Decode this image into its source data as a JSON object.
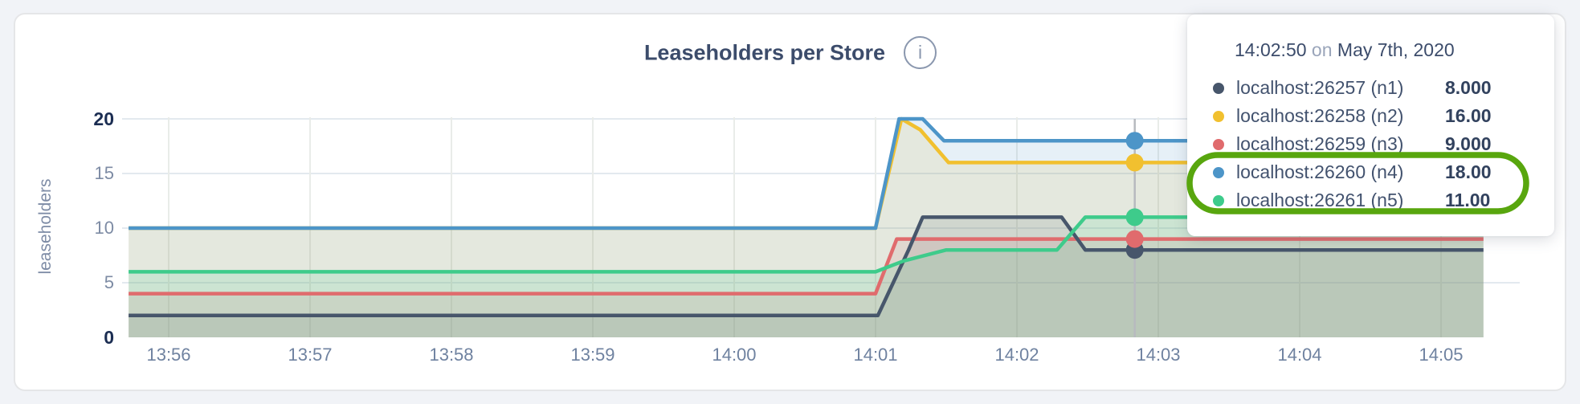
{
  "header": {
    "title": "Leaseholders per Store",
    "info_icon": "i"
  },
  "tooltip": {
    "time": "14:02:50",
    "conj": "on",
    "date": "May 7th, 2020",
    "rows": [
      {
        "label": "localhost:26257 (n1)",
        "value": "8.000"
      },
      {
        "label": "localhost:26258 (n2)",
        "value": "16.00"
      },
      {
        "label": "localhost:26259 (n3)",
        "value": "9.000"
      },
      {
        "label": "localhost:26260 (n4)",
        "value": "18.00"
      },
      {
        "label": "localhost:26261 (n5)",
        "value": "11.00"
      }
    ]
  },
  "annotation": {
    "shape": "rounded-oval",
    "color": "#58a60e",
    "rows_circled": [
      "localhost:26260 (n4)",
      "localhost:26261 (n5)"
    ]
  },
  "colors": {
    "text_dark": "#3c4c6b",
    "text_muted": "#7e8ca6",
    "scanline": "#b7babf",
    "grid_horizontal": "#e3e9ef",
    "grid_vertical": "#e9ece9"
  },
  "chart_data": {
    "type": "area",
    "title": "Leaseholders per Store",
    "ylabel": "leaseholders",
    "xlabel": "",
    "ylim": [
      0,
      20
    ],
    "grid": true,
    "legend": "tooltip",
    "x_range": [
      "13:55:43",
      "14:05:18"
    ],
    "y_ticks": [
      {
        "label": "20",
        "value": 20,
        "emphasis": true
      },
      {
        "label": "15",
        "value": 15,
        "emphasis": false
      },
      {
        "label": "10",
        "value": 10,
        "emphasis": false
      },
      {
        "label": "5",
        "value": 5,
        "emphasis": false
      },
      {
        "label": "0",
        "value": 0,
        "emphasis": true
      }
    ],
    "x_ticks": [
      {
        "label": "13:56"
      },
      {
        "label": "13:57"
      },
      {
        "label": "13:58"
      },
      {
        "label": "13:59"
      },
      {
        "label": "14:00"
      },
      {
        "label": "14:01"
      },
      {
        "label": "14:02"
      },
      {
        "label": "14:03"
      },
      {
        "label": "14:04"
      },
      {
        "label": "14:05"
      }
    ],
    "series": [
      {
        "name": "localhost:26257 (n1)",
        "color": "#47566b",
        "points": [
          [
            "13:55:43",
            2
          ],
          [
            "14:01:01",
            2
          ],
          [
            "14:01:14",
            8
          ],
          [
            "14:01:20",
            11
          ],
          [
            "14:02:19",
            11
          ],
          [
            "14:02:29",
            8
          ],
          [
            "14:05:18",
            8
          ]
        ]
      },
      {
        "name": "localhost:26258 (n2)",
        "color": "#f1c02f",
        "points": [
          [
            "13:55:43",
            10
          ],
          [
            "14:01:00",
            10
          ],
          [
            "14:01:11",
            20
          ],
          [
            "14:01:19",
            19
          ],
          [
            "14:01:31",
            16
          ],
          [
            "14:05:18",
            16
          ]
        ]
      },
      {
        "name": "localhost:26259 (n3)",
        "color": "#e06b6d",
        "points": [
          [
            "13:55:43",
            4
          ],
          [
            "14:01:00",
            4
          ],
          [
            "14:01:09",
            9
          ],
          [
            "14:05:18",
            9
          ]
        ]
      },
      {
        "name": "localhost:26260 (n4)",
        "color": "#4d95c8",
        "points": [
          [
            "13:55:43",
            10
          ],
          [
            "14:01:00",
            10
          ],
          [
            "14:01:10",
            20
          ],
          [
            "14:01:20",
            20
          ],
          [
            "14:01:29",
            18
          ],
          [
            "14:05:18",
            18
          ]
        ]
      },
      {
        "name": "localhost:26261 (n5)",
        "color": "#3ecb8b",
        "points": [
          [
            "13:55:43",
            6
          ],
          [
            "14:01:00",
            6
          ],
          [
            "14:01:12",
            7
          ],
          [
            "14:01:30",
            8
          ],
          [
            "14:02:17",
            8
          ],
          [
            "14:02:29",
            11
          ],
          [
            "14:05:18",
            11
          ]
        ]
      }
    ],
    "hover": {
      "time": "14:02:50",
      "values": [
        8,
        16,
        9,
        18,
        11
      ]
    }
  }
}
